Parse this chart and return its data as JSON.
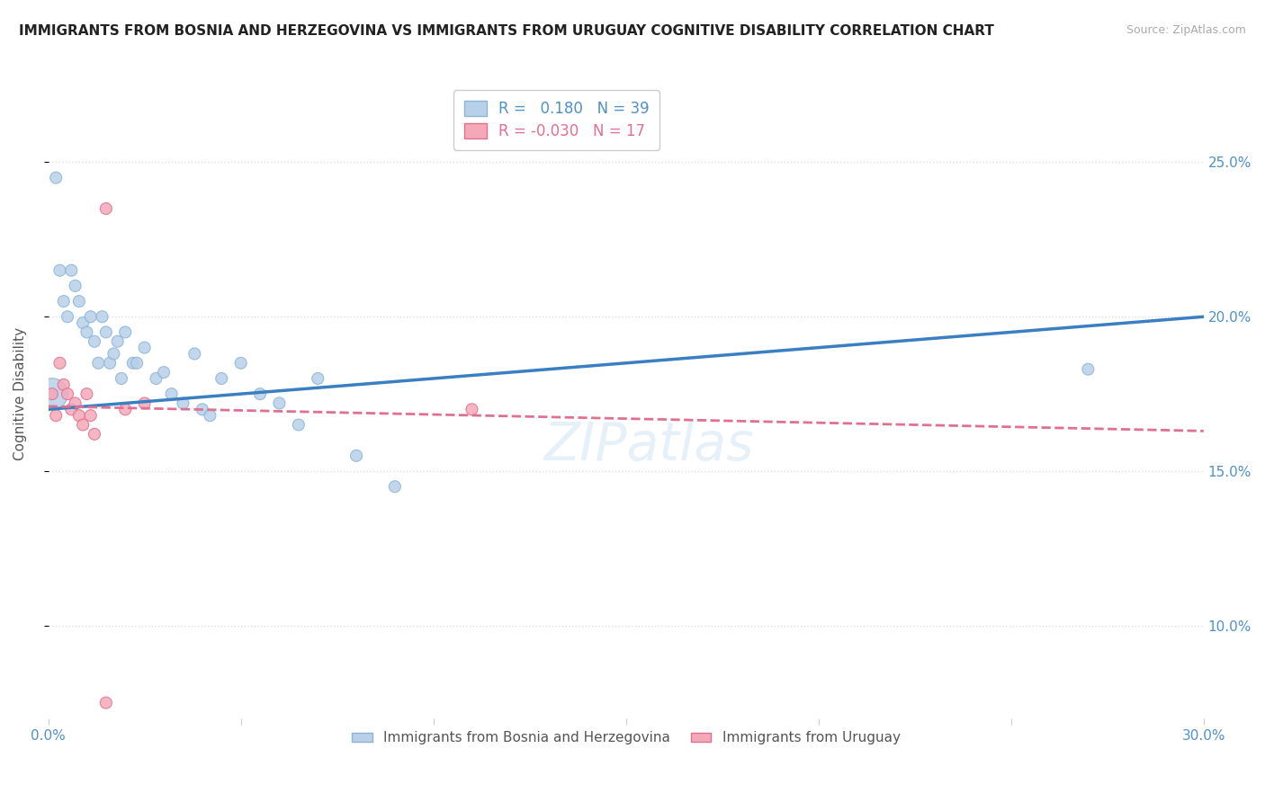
{
  "title": "IMMIGRANTS FROM BOSNIA AND HERZEGOVINA VS IMMIGRANTS FROM URUGUAY COGNITIVE DISABILITY CORRELATION CHART",
  "source": "Source: ZipAtlas.com",
  "ylabel": "Cognitive Disability",
  "xlim": [
    0.0,
    0.3
  ],
  "ylim": [
    0.07,
    0.28
  ],
  "yticks": [
    0.1,
    0.15,
    0.2,
    0.25
  ],
  "ytick_labels": [
    "10.0%",
    "15.0%",
    "20.0%",
    "25.0%"
  ],
  "xticks": [
    0.0,
    0.05,
    0.1,
    0.15,
    0.2,
    0.25,
    0.3
  ],
  "xtick_labels": [
    "0.0%",
    "",
    "",
    "",
    "",
    "",
    "30.0%"
  ],
  "background_color": "#ffffff",
  "series": [
    {
      "name": "Immigrants from Bosnia and Herzegovina",
      "color": "#b8d0e8",
      "edge_color": "#8ab4d8",
      "R": 0.18,
      "N": 39,
      "line_color": "#3a7fc1",
      "line_style": "solid",
      "x": [
        0.002,
        0.003,
        0.004,
        0.005,
        0.006,
        0.007,
        0.008,
        0.009,
        0.01,
        0.011,
        0.012,
        0.013,
        0.014,
        0.015,
        0.016,
        0.017,
        0.018,
        0.019,
        0.02,
        0.022,
        0.023,
        0.025,
        0.028,
        0.03,
        0.032,
        0.035,
        0.038,
        0.04,
        0.042,
        0.045,
        0.05,
        0.055,
        0.06,
        0.065,
        0.07,
        0.08,
        0.09,
        0.001,
        0.27
      ],
      "y": [
        0.245,
        0.215,
        0.205,
        0.2,
        0.215,
        0.21,
        0.205,
        0.198,
        0.195,
        0.2,
        0.192,
        0.185,
        0.2,
        0.195,
        0.185,
        0.188,
        0.192,
        0.18,
        0.195,
        0.185,
        0.185,
        0.19,
        0.18,
        0.182,
        0.175,
        0.172,
        0.188,
        0.17,
        0.168,
        0.18,
        0.185,
        0.175,
        0.172,
        0.165,
        0.18,
        0.155,
        0.145,
        0.175,
        0.183
      ],
      "sizes": [
        25,
        25,
        25,
        25,
        25,
        25,
        25,
        25,
        25,
        25,
        25,
        25,
        25,
        25,
        25,
        25,
        25,
        25,
        25,
        25,
        25,
        25,
        25,
        25,
        25,
        25,
        25,
        25,
        25,
        25,
        25,
        25,
        25,
        25,
        25,
        25,
        25,
        180,
        25
      ]
    },
    {
      "name": "Immigrants from Uruguay",
      "color": "#f4a8b8",
      "edge_color": "#e07090",
      "R": -0.03,
      "N": 17,
      "line_color": "#e07090",
      "line_style": "dashed",
      "x": [
        0.001,
        0.002,
        0.003,
        0.004,
        0.005,
        0.006,
        0.007,
        0.008,
        0.009,
        0.01,
        0.011,
        0.012,
        0.015,
        0.02,
        0.025,
        0.11,
        0.015
      ],
      "y": [
        0.175,
        0.168,
        0.185,
        0.178,
        0.175,
        0.17,
        0.172,
        0.168,
        0.165,
        0.175,
        0.168,
        0.162,
        0.235,
        0.17,
        0.172,
        0.17,
        0.075
      ],
      "sizes": [
        25,
        25,
        25,
        25,
        25,
        25,
        25,
        25,
        25,
        25,
        25,
        25,
        25,
        25,
        25,
        25,
        25
      ]
    }
  ],
  "title_fontsize": 11,
  "axis_label_color": "#5090c8",
  "grid_color": "#dddddd",
  "line_blue_start_y": 0.17,
  "line_blue_end_y": 0.2,
  "line_pink_start_y": 0.171,
  "line_pink_end_y": 0.163
}
